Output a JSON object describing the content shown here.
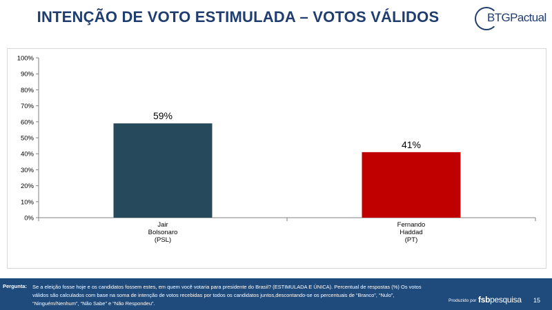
{
  "header": {
    "title": "INTENÇÃO DE VOTO ESTIMULADA – VOTOS VÁLIDOS",
    "logo_text": "BTGPactual",
    "title_color": "#1f3d6e"
  },
  "chart_data": {
    "type": "bar",
    "categories": [
      [
        "Jair",
        "Bolsonaro",
        "(PSL)"
      ],
      [
        "Fernando",
        "Haddad",
        "(PT)"
      ]
    ],
    "values": [
      59,
      41
    ],
    "data_labels": [
      "59%",
      "41%"
    ],
    "colors": [
      "#264a5b",
      "#c00000"
    ],
    "ylim": [
      0,
      100
    ],
    "yticks": [
      "0%",
      "10%",
      "20%",
      "30%",
      "40%",
      "50%",
      "60%",
      "70%",
      "80%",
      "90%",
      "100%"
    ],
    "grid": false,
    "legend": "none",
    "title": "",
    "xlabel": "",
    "ylabel": ""
  },
  "footer": {
    "question_label": "Pergunta:",
    "question_text": "Se a eleição fosse hoje e os candidatos fossem estes, em quem você votaria para presidente do Brasil? (ESTIMULADA E ÚNICA). Percentual de respostas (%) Os votos válidos são calculados com base na soma de intenção de votos recebidas por todos os candidatos juntos,descontando-se os percentuais de “Branco”, “Nulo”, “Ninguém/Nenhum”, “Não Sabe” e “Não Respondeu”.",
    "produced_by": "Produzido por",
    "brand_bold": "fsb",
    "brand_light": "pesquisa",
    "page_number": "15",
    "bg_color": "#1f4a7c"
  }
}
